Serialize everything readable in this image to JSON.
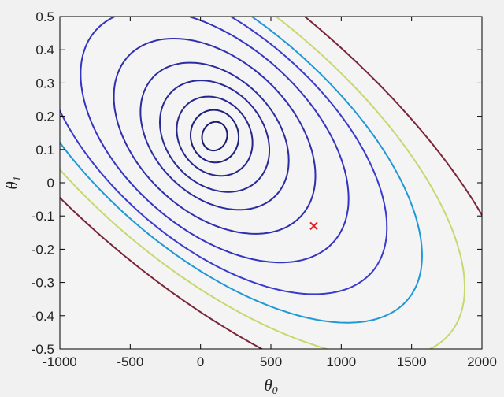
{
  "chart_data": {
    "type": "contour",
    "title": "",
    "xlabel": {
      "symbol": "θ",
      "subscript": "0"
    },
    "ylabel": {
      "symbol": "θ",
      "subscript": "1"
    },
    "xlim": [
      -1000,
      2000
    ],
    "ylim": [
      -0.5,
      0.5
    ],
    "xticks": [
      "-1000",
      "-500",
      "0",
      "500",
      "1000",
      "1500",
      "2000"
    ],
    "xtick_values": [
      -1000,
      -500,
      0,
      500,
      1000,
      1500,
      2000
    ],
    "yticks": [
      "0.5",
      "0.4",
      "0.3",
      "0.2",
      "0.1",
      "0",
      "-0.1",
      "-0.2",
      "-0.3",
      "-0.4",
      "-0.5"
    ],
    "ytick_values": [
      0.5,
      0.4,
      0.3,
      0.2,
      0.1,
      0,
      -0.1,
      -0.2,
      -0.3,
      -0.4,
      -0.5
    ],
    "grid": false,
    "minimum": {
      "x": 100,
      "y": 0.14
    },
    "contours": [
      {
        "u": 70,
        "v": 0.04,
        "color": "#1a1a6e"
      },
      {
        "u": 140,
        "v": 0.07,
        "color": "#1f1f7e"
      },
      {
        "u": 230,
        "v": 0.1,
        "color": "#26268c"
      },
      {
        "u": 340,
        "v": 0.135,
        "color": "#2a2a96"
      },
      {
        "u": 470,
        "v": 0.17,
        "color": "#2c2ca2"
      },
      {
        "u": 650,
        "v": 0.215,
        "color": "#2e2eae"
      },
      {
        "u": 880,
        "v": 0.26,
        "color": "#3434c0"
      },
      {
        "u": 1150,
        "v": 0.3,
        "color": "#3a3acc"
      },
      {
        "u": 1400,
        "v": 0.33,
        "color": "#1f98d8"
      },
      {
        "u": 1700,
        "v": 0.37,
        "color": "#c8d86e"
      },
      {
        "u": 2100,
        "v": 0.42,
        "color": "#7a2438"
      }
    ],
    "marker": {
      "x": 805,
      "y": -0.13,
      "symbol": "×",
      "color": "#e02020"
    }
  }
}
